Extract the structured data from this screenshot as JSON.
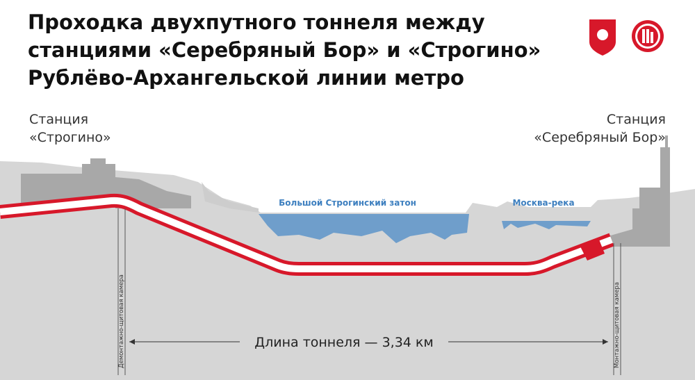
{
  "header": {
    "title_lines": [
      "Проходка двухпутного тоннеля между",
      "станциями «Серебряный Бор» и «Строгино»",
      "Рублёво-Архангельской линии метро"
    ]
  },
  "stations": [
    {
      "lines": [
        "Станция",
        "«Строгино»"
      ]
    },
    {
      "lines": [
        "Станция",
        "«Серебряный Бор»"
      ]
    }
  ],
  "water": [
    "Большой Строгинский затон",
    "Москва-река"
  ],
  "chambers": [
    "Демонтажно-щитовая камера",
    "Монтажно-щитовая камера"
  ],
  "tunnel_length": "Длина тоннеля — 3,34 км"
}
